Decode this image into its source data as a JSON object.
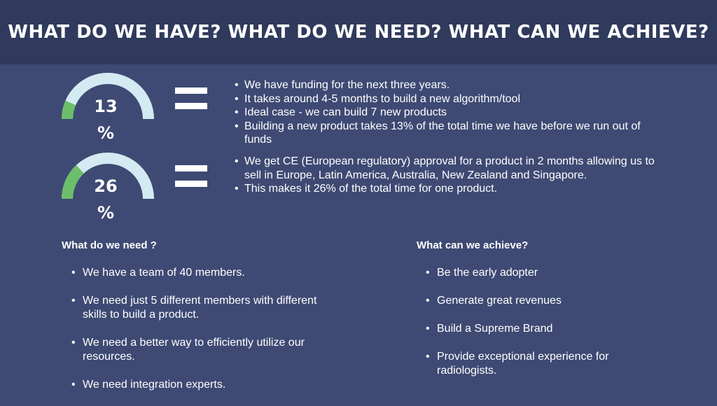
{
  "header": {
    "title": "WHAT DO WE HAVE? WHAT DO WE NEED? WHAT CAN WE ACHIEVE?"
  },
  "colors": {
    "background": "#3e4a73",
    "header_bg": "#2f3a5c",
    "gauge_track": "#d4eaf3",
    "gauge_fill": "#6cbf6a"
  },
  "gauges": [
    {
      "value": 13,
      "number": "13",
      "unit": "%"
    },
    {
      "value": 26,
      "number": "26",
      "unit": "%"
    }
  ],
  "have": {
    "block1": [
      "We have funding for the next three years.",
      "It takes around 4-5 months to build a new algorithm/tool",
      "Ideal case - we can build 7 new products",
      "Building a new product takes 13% of the total time we have before we run out of funds"
    ],
    "block2": [
      "We get CE (European regulatory) approval for a product in 2 months allowing us to sell in Europe, Latin America, Australia, New Zealand and Singapore.",
      "This makes it 26% of the total time for one product."
    ]
  },
  "need": {
    "title": "What do we need ?",
    "items": [
      "We have a team of 40 members.",
      "We need just 5 different members with different skills to build a product.",
      "We need a better way to efficiently utilize our resources.",
      "We need integration experts."
    ]
  },
  "achieve": {
    "title": "What can we achieve?",
    "items": [
      "Be the early adopter",
      "Generate great revenues",
      "Build a Supreme Brand",
      "Provide exceptional experience for radiologists."
    ]
  }
}
